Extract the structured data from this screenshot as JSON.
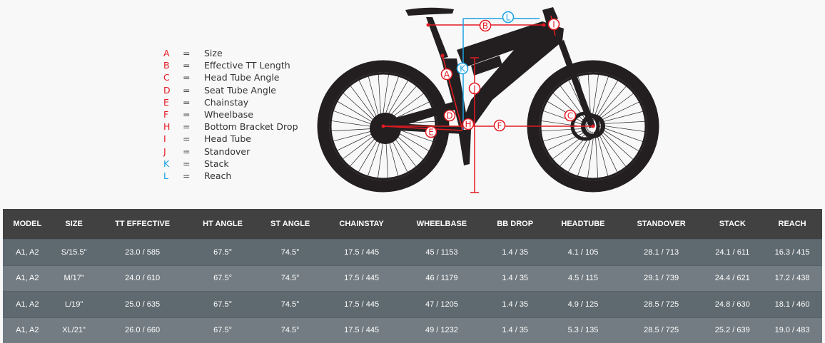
{
  "colors": {
    "red": "#e31b23",
    "blue": "#1ba1e2",
    "header_bg": "#414141",
    "row_dark": "#5f6a70",
    "row_light": "#737c82",
    "bike": "#231f20"
  },
  "legend": [
    {
      "letter": "A",
      "eq": "=",
      "label": "Size",
      "color": "red"
    },
    {
      "letter": "B",
      "eq": "=",
      "label": "Effective TT Length",
      "color": "red"
    },
    {
      "letter": "C",
      "eq": "=",
      "label": "Head Tube Angle",
      "color": "red"
    },
    {
      "letter": "D",
      "eq": "=",
      "label": "Seat Tube Angle",
      "color": "red"
    },
    {
      "letter": "E",
      "eq": "=",
      "label": "Chainstay",
      "color": "red"
    },
    {
      "letter": "F",
      "eq": "=",
      "label": "Wheelbase",
      "color": "red"
    },
    {
      "letter": "H",
      "eq": "=",
      "label": "Bottom Bracket Drop",
      "color": "red"
    },
    {
      "letter": "I",
      "eq": "=",
      "label": "Head Tube",
      "color": "red"
    },
    {
      "letter": "J",
      "eq": "=",
      "label": "Standover",
      "color": "red"
    },
    {
      "letter": "K",
      "eq": "=",
      "label": "Stack",
      "color": "blue"
    },
    {
      "letter": "L",
      "eq": "=",
      "label": "Reach",
      "color": "blue"
    }
  ],
  "diagram": {
    "markers": [
      "L",
      "B",
      "I",
      "A",
      "K",
      "J",
      "D",
      "H",
      "E",
      "F",
      "C"
    ]
  },
  "table": {
    "headers": [
      "MODEL",
      "SIZE",
      "TT EFFECTIVE",
      "HT ANGLE",
      "ST ANGLE",
      "CHAINSTAY",
      "WHEELBASE",
      "BB DROP",
      "HEADTUBE",
      "STANDOVER",
      "STACK",
      "REACH"
    ],
    "rows": [
      [
        "A1, A2",
        "S/15.5\"",
        "23.0 / 585",
        "67.5°",
        "74.5°",
        "17.5 / 445",
        "45 / 1153",
        "1.4 / 35",
        "4.1 / 105",
        "28.1 / 713",
        "24.1 / 611",
        "16.3 / 415"
      ],
      [
        "A1, A2",
        "M/17\"",
        "24.0 / 610",
        "67.5°",
        "74.5°",
        "17.5 / 445",
        "46 / 1179",
        "1.4 / 35",
        "4.5 / 115",
        "29.1 / 739",
        "24.4 / 621",
        "17.2 / 438"
      ],
      [
        "A1, A2",
        "L/19\"",
        "25.0 / 635",
        "67.5°",
        "74.5°",
        "17.5 / 445",
        "47 / 1205",
        "1.4 / 35",
        "4.9 / 125",
        "28.5 / 725",
        "24.8 / 630",
        "18.1 / 460"
      ],
      [
        "A1, A2",
        "XL/21\"",
        "26.0 / 660",
        "67.5°",
        "74.5°",
        "17.5 / 445",
        "49 / 1232",
        "1.4 / 35",
        "5.3 / 135",
        "28.5 / 725",
        "25.2 / 639",
        "19.0 / 483"
      ]
    ]
  }
}
